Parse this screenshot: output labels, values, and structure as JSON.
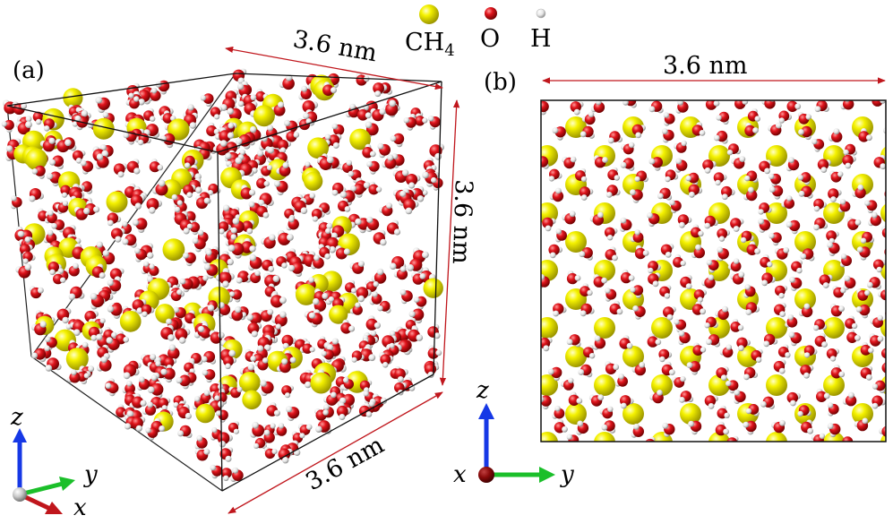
{
  "legend": {
    "items": [
      {
        "symbol_color": "#f2f200",
        "label": "CH",
        "sub": "4"
      },
      {
        "symbol_color": "#e0141c",
        "label": "O",
        "sub": ""
      },
      {
        "symbol_color": "#f4f4f4",
        "label": "H",
        "sub": ""
      }
    ]
  },
  "panel_a": {
    "label": "(a)",
    "dim_top": "3.6 nm",
    "dim_right": "3.6 nm",
    "dim_bottom": "3.6 nm",
    "axes": {
      "z": "z",
      "y": "y",
      "x": "x"
    }
  },
  "panel_b": {
    "label": "(b)",
    "dim_top": "3.6 nm",
    "axes": {
      "z": "z",
      "y": "y",
      "x": "x"
    }
  },
  "colors": {
    "methane": "#f2f200",
    "oxygen": "#e0141c",
    "hydrogen": "#f4f4f4",
    "dimension_arrow": "#c0161c",
    "axis_z": "#1638e6",
    "axis_y": "#1bbf2a",
    "axis_x": "#c0161c",
    "axis_origin": "#aaaaaa"
  }
}
